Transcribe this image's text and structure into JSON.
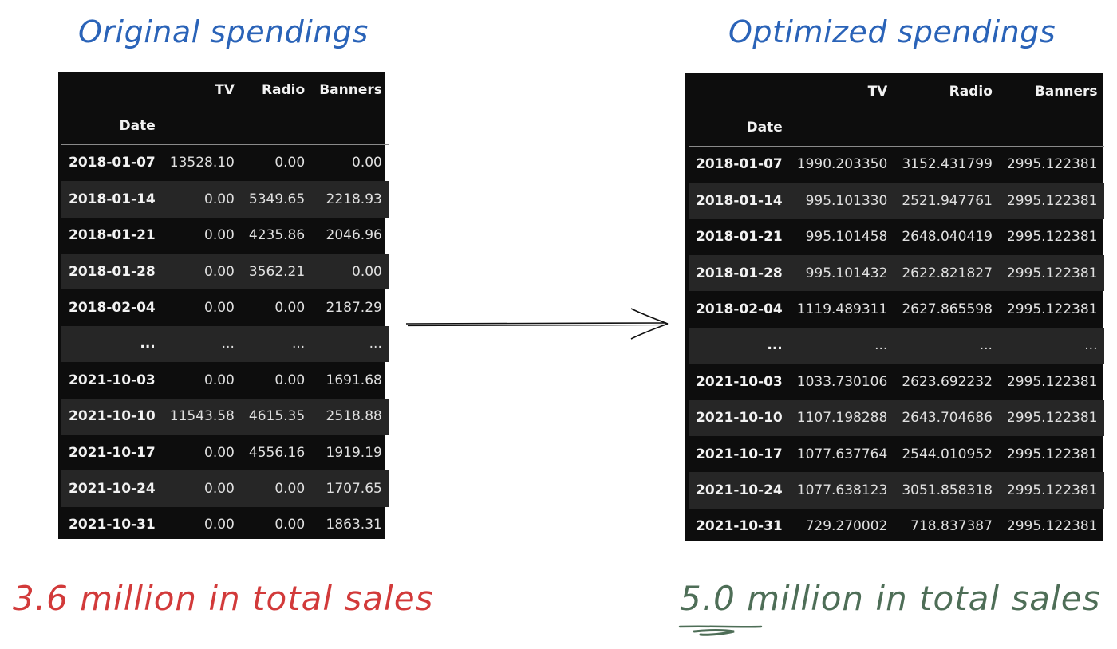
{
  "original": {
    "title": "Original spendings",
    "columns": [
      "TV",
      "Radio",
      "Banners"
    ],
    "index_name": "Date",
    "rows": [
      {
        "date": "2018-01-07",
        "values": [
          "13528.10",
          "0.00",
          "0.00"
        ]
      },
      {
        "date": "2018-01-14",
        "values": [
          "0.00",
          "5349.65",
          "2218.93"
        ]
      },
      {
        "date": "2018-01-21",
        "values": [
          "0.00",
          "4235.86",
          "2046.96"
        ]
      },
      {
        "date": "2018-01-28",
        "values": [
          "0.00",
          "3562.21",
          "0.00"
        ]
      },
      {
        "date": "2018-02-04",
        "values": [
          "0.00",
          "0.00",
          "2187.29"
        ]
      },
      {
        "date": "...",
        "values": [
          "...",
          "...",
          "..."
        ]
      },
      {
        "date": "2021-10-03",
        "values": [
          "0.00",
          "0.00",
          "1691.68"
        ]
      },
      {
        "date": "2021-10-10",
        "values": [
          "11543.58",
          "4615.35",
          "2518.88"
        ]
      },
      {
        "date": "2021-10-17",
        "values": [
          "0.00",
          "4556.16",
          "1919.19"
        ]
      },
      {
        "date": "2021-10-24",
        "values": [
          "0.00",
          "0.00",
          "1707.65"
        ]
      },
      {
        "date": "2021-10-31",
        "values": [
          "0.00",
          "0.00",
          "1863.31"
        ]
      }
    ],
    "total_text": "3.6 million in total sales",
    "color": "#d23a3a"
  },
  "optimized": {
    "title": "Optimized spendings",
    "columns": [
      "TV",
      "Radio",
      "Banners"
    ],
    "index_name": "Date",
    "rows": [
      {
        "date": "2018-01-07",
        "values": [
          "1990.203350",
          "3152.431799",
          "2995.122381"
        ]
      },
      {
        "date": "2018-01-14",
        "values": [
          "995.101330",
          "2521.947761",
          "2995.122381"
        ]
      },
      {
        "date": "2018-01-21",
        "values": [
          "995.101458",
          "2648.040419",
          "2995.122381"
        ]
      },
      {
        "date": "2018-01-28",
        "values": [
          "995.101432",
          "2622.821827",
          "2995.122381"
        ]
      },
      {
        "date": "2018-02-04",
        "values": [
          "1119.489311",
          "2627.865598",
          "2995.122381"
        ]
      },
      {
        "date": "...",
        "values": [
          "...",
          "...",
          "..."
        ]
      },
      {
        "date": "2021-10-03",
        "values": [
          "1033.730106",
          "2623.692232",
          "2995.122381"
        ]
      },
      {
        "date": "2021-10-10",
        "values": [
          "1107.198288",
          "2643.704686",
          "2995.122381"
        ]
      },
      {
        "date": "2021-10-17",
        "values": [
          "1077.637764",
          "2544.010952",
          "2995.122381"
        ]
      },
      {
        "date": "2021-10-24",
        "values": [
          "1077.638123",
          "3051.858318",
          "2995.122381"
        ]
      },
      {
        "date": "2021-10-31",
        "values": [
          "729.270002",
          "718.837387",
          "2995.122381"
        ]
      }
    ],
    "total_text": "5.0 million in total sales",
    "color": "#4e6e57"
  },
  "title_color": "#2a63b8"
}
